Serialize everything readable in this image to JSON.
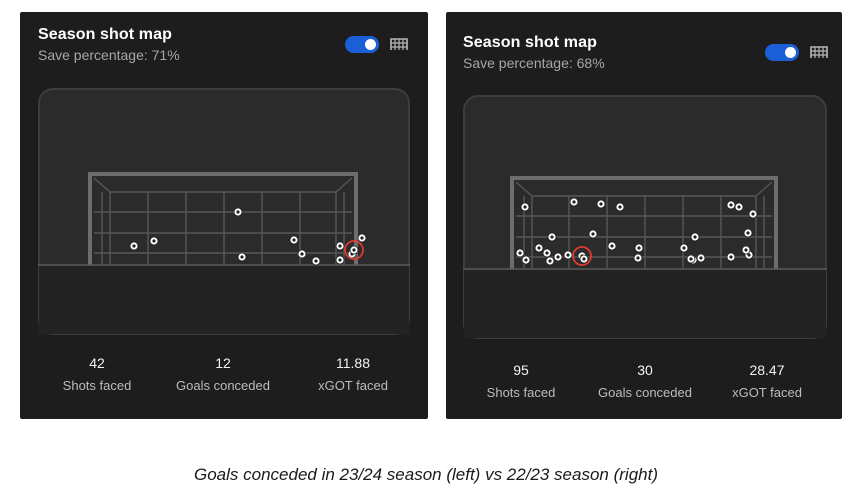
{
  "panels": [
    {
      "title": "Season shot map",
      "subtitle": "Save percentage: 71%",
      "toggle_on": true,
      "icon": "goal-net-icon",
      "stats": [
        {
          "value": "42",
          "label": "Shots faced"
        },
        {
          "value": "12",
          "label": "Goals conceded"
        },
        {
          "value": "11.88",
          "label": "xGOT faced"
        }
      ]
    },
    {
      "title": "Season shot map",
      "subtitle": "Save percentage: 68%",
      "toggle_on": true,
      "icon": "goal-net-icon",
      "stats": [
        {
          "value": "95",
          "label": "Shots faced"
        },
        {
          "value": "30",
          "label": "Goals conceded"
        },
        {
          "value": "28.47",
          "label": "xGOT faced"
        }
      ]
    }
  ],
  "caption": "Goals conceded in 23/24 season (left) vs 22/23 season (right)",
  "colors": {
    "card": "#1d1d1d",
    "accent": "#1b5fd6",
    "highlight": "#e03a2f",
    "field": "#2b2b2b"
  }
}
